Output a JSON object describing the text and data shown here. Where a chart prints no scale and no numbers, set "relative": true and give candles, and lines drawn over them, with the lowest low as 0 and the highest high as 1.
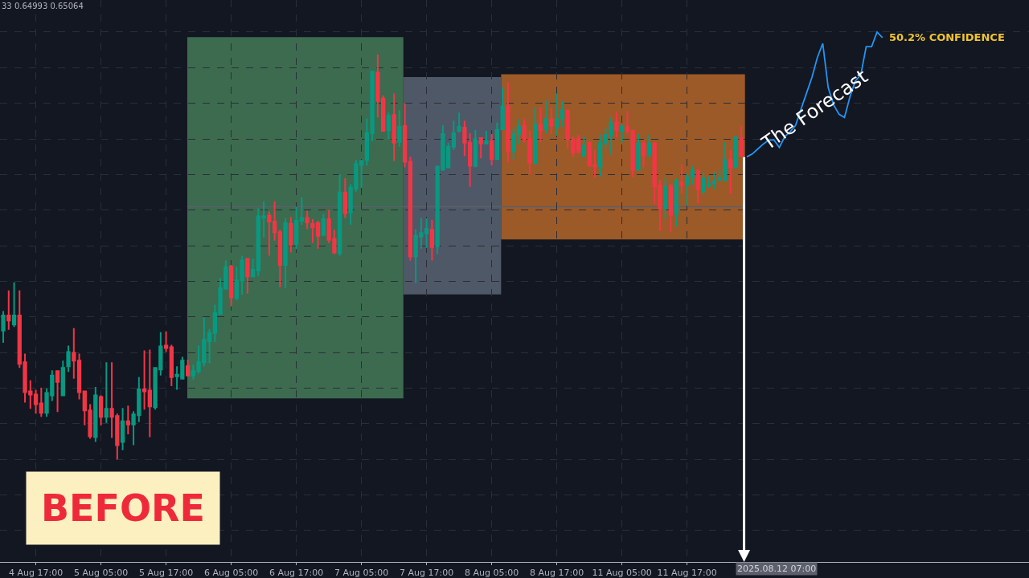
{
  "chart_data": {
    "type": "candlestick",
    "relative": true,
    "grid": true,
    "legend": false,
    "categories": [
      null,
      null,
      null,
      null,
      null,
      null,
      "4 Aug 17:00",
      null,
      null,
      null,
      null,
      null,
      null,
      null,
      null,
      null,
      null,
      null,
      "5 Aug 05:00",
      null,
      null,
      null,
      null,
      null,
      null,
      null,
      null,
      null,
      null,
      null,
      "5 Aug 17:00",
      null,
      null,
      null,
      null,
      null,
      null,
      null,
      null,
      null,
      null,
      null,
      "6 Aug 05:00",
      null,
      null,
      null,
      null,
      null,
      null,
      null,
      null,
      null,
      null,
      null,
      "6 Aug 17:00",
      null,
      null,
      null,
      null,
      null,
      null,
      null,
      null,
      null,
      null,
      null,
      "7 Aug 05:00",
      null,
      null,
      null,
      null,
      null,
      null,
      null,
      null,
      null,
      null,
      null,
      "7 Aug 17:00",
      null,
      null,
      null,
      null,
      null,
      null,
      null,
      null,
      null,
      null,
      null,
      "8 Aug 05:00",
      null,
      null,
      null,
      null,
      null,
      null,
      null,
      null,
      null,
      null,
      null,
      "8 Aug 17:00",
      null,
      null,
      null,
      null,
      null,
      null,
      null,
      null,
      null,
      null,
      null,
      "11 Aug 05:00",
      null,
      null,
      null,
      null,
      null,
      null,
      null,
      null,
      null,
      null,
      null,
      "11 Aug 17:00",
      null,
      null,
      null,
      null,
      null,
      null,
      null,
      null,
      null,
      null,
      null,
      null,
      null,
      null,
      null,
      null,
      null,
      null,
      null,
      null,
      null,
      null,
      null,
      null,
      null,
      null,
      null,
      null,
      null,
      null,
      null,
      null,
      null,
      null,
      null,
      null
    ],
    "ohlc": [
      [
        0.318,
        0.366,
        0.288,
        0.355
      ],
      [
        0.355,
        0.417,
        0.32,
        0.343
      ],
      [
        0.333,
        0.437,
        0.327,
        0.355
      ],
      [
        0.355,
        0.417,
        0.226,
        0.236
      ],
      [
        0.24,
        0.261,
        0.14,
        0.166
      ],
      [
        0.168,
        0.195,
        0.125,
        0.16
      ],
      [
        0.16,
        0.172,
        0.113,
        0.136
      ],
      [
        0.138,
        0.177,
        0.105,
        0.115
      ],
      [
        0.115,
        0.175,
        0.105,
        0.164
      ],
      [
        0.158,
        0.22,
        0.144,
        0.207
      ],
      [
        0.218,
        0.218,
        0.117,
        0.191
      ],
      [
        0.158,
        0.244,
        0.158,
        0.226
      ],
      [
        0.23,
        0.281,
        0.216,
        0.265
      ],
      [
        0.263,
        0.324,
        0.199,
        0.244
      ],
      [
        0.244,
        0.261,
        0.148,
        0.166
      ],
      [
        0.168,
        0.168,
        0.084,
        0.121
      ],
      [
        0.121,
        0.136,
        0.051,
        0.057
      ],
      [
        0.055,
        0.179,
        0.043,
        0.158
      ],
      [
        0.154,
        0.158,
        0.084,
        0.105
      ],
      [
        0.105,
        0.24,
        0.09,
        0.125
      ],
      [
        0.125,
        0.24,
        0.053,
        0.105
      ],
      [
        0.107,
        0.113,
        0,
        0.035
      ],
      [
        0.043,
        0.127,
        0.023,
        0.094
      ],
      [
        0.094,
        0.133,
        0.062,
        0.086
      ],
      [
        0.086,
        0.119,
        0.035,
        0.111
      ],
      [
        0.109,
        0.203,
        0.092,
        0.173
      ],
      [
        0.173,
        0.269,
        0.123,
        0.168
      ],
      [
        0.17,
        0.271,
        0.055,
        0.131
      ],
      [
        0.129,
        0.226,
        0.123,
        0.226
      ],
      [
        0.222,
        0.314,
        0.207,
        0.279
      ],
      [
        0.281,
        0.316,
        0.265,
        0.275
      ],
      [
        0.277,
        0.283,
        0.181,
        0.203
      ],
      [
        0.205,
        0.23,
        0.172,
        0.209
      ],
      [
        0.199,
        0.253,
        0.199,
        0.244
      ],
      [
        0.23,
        0.246,
        0.207,
        0.207
      ],
      [
        0.207,
        0.234,
        0.197,
        0.218
      ],
      [
        0.218,
        0.281,
        0.212,
        0.24
      ],
      [
        0.24,
        0.351,
        0.23,
        0.296
      ],
      [
        0.292,
        0.322,
        0.238,
        0.312
      ],
      [
        0.312,
        0.382,
        0.29,
        0.361
      ],
      [
        0.359,
        0.448,
        0.359,
        0.423
      ],
      [
        0.421,
        0.491,
        0.421,
        0.474
      ],
      [
        0.476,
        0.48,
        0.378,
        0.4
      ],
      [
        0.398,
        0.476,
        0.394,
        0.442
      ],
      [
        0.442,
        0.503,
        0.407,
        0.491
      ],
      [
        0.495,
        0.495,
        0.409,
        0.452
      ],
      [
        0.452,
        0.495,
        0.452,
        0.468
      ],
      [
        0.466,
        0.62,
        0.452,
        0.6
      ],
      [
        0.596,
        0.637,
        0.548,
        0.6
      ],
      [
        0.602,
        0.612,
        0.503,
        0.587
      ],
      [
        0.587,
        0.637,
        0.54,
        0.561
      ],
      [
        0.561,
        0.567,
        0.425,
        0.48
      ],
      [
        0.48,
        0.596,
        0.423,
        0.583
      ],
      [
        0.581,
        0.598,
        0.511,
        0.53
      ],
      [
        0.532,
        0.624,
        0.519,
        0.589
      ],
      [
        0.589,
        0.647,
        0.579,
        0.596
      ],
      [
        0.596,
        0.614,
        0.569,
        0.585
      ],
      [
        0.581,
        0.593,
        0.534,
        0.573
      ],
      [
        0.583,
        0.589,
        0.52,
        0.552
      ],
      [
        0.554,
        0.606,
        0.554,
        0.593
      ],
      [
        0.593,
        0.616,
        0.534,
        0.542
      ],
      [
        0.544,
        0.567,
        0.507,
        0.511
      ],
      [
        0.509,
        0.704,
        0.503,
        0.659
      ],
      [
        0.659,
        0.694,
        0.596,
        0.608
      ],
      [
        0.61,
        0.68,
        0.579,
        0.671
      ],
      [
        0.669,
        0.739,
        0.661,
        0.729
      ],
      [
        0.727,
        0.739,
        0.671,
        0.737
      ],
      [
        0.739,
        0.842,
        0.725,
        0.805
      ],
      [
        0.805,
        0.957,
        0.786,
        0.957
      ],
      [
        0.955,
        1,
        0.844,
        0.885
      ],
      [
        0.891,
        0.899,
        0.811,
        0.811
      ],
      [
        0.813,
        0.856,
        0.791,
        0.848
      ],
      [
        0.85,
        0.903,
        0.737,
        0.782
      ],
      [
        0.784,
        0.862,
        0.772,
        0.821
      ],
      [
        0.823,
        0.879,
        0.721,
        0.735
      ],
      [
        0.735,
        0.747,
        0.491,
        0.501
      ],
      [
        0.501,
        0.569,
        0.435,
        0.552
      ],
      [
        0.55,
        0.596,
        0.52,
        0.559
      ],
      [
        0.558,
        0.595,
        0.522,
        0.569
      ],
      [
        0.567,
        0.591,
        0.491,
        0.524
      ],
      [
        0.526,
        0.723,
        0.507,
        0.723
      ],
      [
        0.715,
        0.825,
        0.715,
        0.803
      ],
      [
        0.721,
        0.782,
        0.721,
        0.772
      ],
      [
        0.772,
        0.836,
        0.764,
        0.805
      ],
      [
        0.811,
        0.856,
        0.807,
        0.821
      ],
      [
        0.819,
        0.836,
        0.749,
        0.782
      ],
      [
        0.782,
        0.805,
        0.673,
        0.725
      ],
      [
        0.725,
        0.813,
        0.721,
        0.791
      ],
      [
        0.793,
        0.793,
        0.743,
        0.78
      ],
      [
        0.78,
        0.811,
        0.778,
        0.786
      ],
      [
        0.786,
        0.803,
        0.725,
        0.741
      ],
      [
        0.741,
        0.832,
        0.739,
        0.813
      ],
      [
        0.815,
        0.918,
        0.815,
        0.871
      ],
      [
        0.871,
        0.93,
        0.733,
        0.76
      ],
      [
        0.76,
        0.817,
        0.739,
        0.803
      ],
      [
        0.803,
        0.84,
        0.778,
        0.821
      ],
      [
        0.823,
        0.84,
        0.782,
        0.791
      ],
      [
        0.791,
        0.811,
        0.704,
        0.733
      ],
      [
        0.731,
        0.869,
        0.731,
        0.827
      ],
      [
        0.825,
        0.869,
        0.784,
        0.813
      ],
      [
        0.815,
        0.887,
        0.803,
        0.84
      ],
      [
        0.84,
        0.869,
        0.803,
        0.823
      ],
      [
        0.821,
        0.903,
        0.799,
        0.84
      ],
      [
        0.842,
        0.885,
        0.821,
        0.862
      ],
      [
        0.862,
        0.862,
        0.766,
        0.791
      ],
      [
        0.789,
        0.797,
        0.747,
        0.758
      ],
      [
        0.791,
        0.801,
        0.758,
        0.758
      ],
      [
        0.749,
        0.797,
        0.749,
        0.774
      ],
      [
        0.782,
        0.786,
        0.725,
        0.725
      ],
      [
        0.727,
        0.764,
        0.696,
        0.723
      ],
      [
        0.723,
        0.801,
        0.698,
        0.782
      ],
      [
        0.782,
        0.819,
        0.77,
        0.801
      ],
      [
        0.799,
        0.844,
        0.752,
        0.83
      ],
      [
        0.832,
        0.858,
        0.795,
        0.813
      ],
      [
        0.811,
        0.823,
        0.782,
        0.823
      ],
      [
        0.821,
        0.86,
        0.803,
        0.811
      ],
      [
        0.811,
        0.811,
        0.696,
        0.715
      ],
      [
        0.715,
        0.803,
        0.715,
        0.78
      ],
      [
        0.78,
        0.788,
        0.721,
        0.75
      ],
      [
        0.752,
        0.801,
        0.745,
        0.78
      ],
      [
        0.78,
        0.784,
        0.63,
        0.674
      ],
      [
        0.676,
        0.69,
        0.565,
        0.62
      ],
      [
        0.62,
        0.694,
        0.593,
        0.673
      ],
      [
        0.674,
        0.68,
        0.561,
        0.604
      ],
      [
        0.606,
        0.694,
        0.575,
        0.686
      ],
      [
        0.684,
        0.729,
        0.657,
        0.678
      ],
      [
        0.678,
        0.706,
        0.626,
        0.696
      ],
      [
        0.698,
        0.725,
        0.678,
        0.713
      ],
      [
        0.713,
        0.713,
        0.632,
        0.667
      ],
      [
        0.661,
        0.708,
        0.655,
        0.694
      ],
      [
        0.676,
        0.7,
        0.671,
        0.68
      ],
      [
        0.682,
        0.71,
        0.667,
        0.686
      ],
      [
        0.69,
        0.715,
        0.688,
        0.694
      ],
      [
        0.69,
        0.784,
        0.684,
        0.739
      ],
      [
        0.739,
        0.764,
        0.655,
        0.721
      ],
      [
        0.721,
        0.797,
        0.721,
        0.795
      ],
      [
        0.793,
        0.825,
        0.749,
        0.749
      ],
      null,
      null,
      null,
      null,
      null,
      null,
      null,
      null,
      null,
      null,
      null,
      null,
      null,
      null,
      null,
      null,
      null,
      null,
      null,
      null,
      null,
      null,
      null,
      null,
      null,
      null
    ],
    "series": [
      {
        "type": "line",
        "name": "The Forecast",
        "color": "#2196f3",
        "values": [
          null,
          null,
          null,
          null,
          null,
          null,
          null,
          null,
          null,
          null,
          null,
          null,
          null,
          null,
          null,
          null,
          null,
          null,
          null,
          null,
          null,
          null,
          null,
          null,
          null,
          null,
          null,
          null,
          null,
          null,
          null,
          null,
          null,
          null,
          null,
          null,
          null,
          null,
          null,
          null,
          null,
          null,
          null,
          null,
          null,
          null,
          null,
          null,
          null,
          null,
          null,
          null,
          null,
          null,
          null,
          null,
          null,
          null,
          null,
          null,
          null,
          null,
          null,
          null,
          null,
          null,
          null,
          null,
          null,
          null,
          null,
          null,
          null,
          null,
          null,
          null,
          null,
          null,
          null,
          null,
          null,
          null,
          null,
          null,
          null,
          null,
          null,
          null,
          null,
          null,
          null,
          null,
          null,
          null,
          null,
          null,
          null,
          null,
          null,
          null,
          null,
          null,
          null,
          null,
          null,
          null,
          null,
          null,
          null,
          null,
          null,
          null,
          null,
          null,
          null,
          null,
          null,
          null,
          null,
          null,
          null,
          null,
          null,
          null,
          null,
          null,
          null,
          null,
          null,
          null,
          null,
          null,
          null,
          null,
          null,
          null,
          null,
          0.747,
          0.754,
          0.766,
          0.778,
          0.788,
          0.789,
          0.77,
          0.797,
          0.809,
          0.825,
          0.865,
          0.904,
          0.943,
          0.992,
          1.027,
          0.918,
          0.875,
          0.852,
          0.844,
          0.895,
          0.934,
          0.949,
          1.019,
          1.019,
          1.055,
          1.041
        ]
      }
    ],
    "ref_lines": [
      {
        "axis": "y",
        "value": 0.624,
        "color": "#5d606b"
      }
    ],
    "annotations": [
      "33 0.64993 0.65064",
      "2025.08.12 07:00",
      "50.2% CONFIDENCE",
      "BEFORE"
    ]
  }
}
